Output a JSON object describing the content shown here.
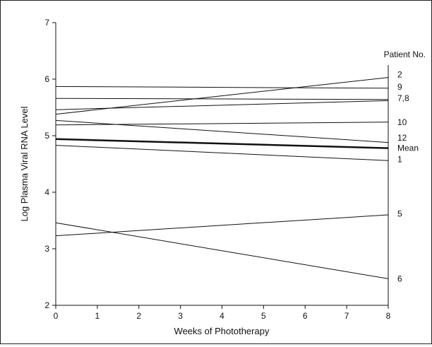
{
  "chart_data": {
    "type": "line",
    "xlabel": "Weeks of Phototherapy",
    "ylabel": "Log Plasma Viral RNA Level",
    "xlim": [
      0,
      8
    ],
    "ylim": [
      2,
      7
    ],
    "xticks": [
      0,
      1,
      2,
      3,
      4,
      5,
      6,
      7,
      8
    ],
    "yticks": [
      2,
      3,
      4,
      5,
      6,
      7
    ],
    "grid": false,
    "legend_title": "Patient No.",
    "series": [
      {
        "name": "2",
        "x": [
          0,
          8
        ],
        "y": [
          5.38,
          6.03
        ]
      },
      {
        "name": "9",
        "x": [
          0,
          8
        ],
        "y": [
          5.87,
          5.84
        ]
      },
      {
        "name": "7,8",
        "x": [
          0,
          8
        ],
        "y": [
          5.66,
          5.64
        ]
      },
      {
        "name": "7,8",
        "x": [
          0,
          8
        ],
        "y": [
          5.46,
          5.62
        ]
      },
      {
        "name": "10",
        "x": [
          0,
          8
        ],
        "y": [
          5.19,
          5.24
        ]
      },
      {
        "name": "12",
        "x": [
          0,
          8
        ],
        "y": [
          5.27,
          4.88
        ]
      },
      {
        "name": "Mean",
        "x": [
          0,
          8
        ],
        "y": [
          4.94,
          4.78
        ],
        "emphasis": true
      },
      {
        "name": "1",
        "x": [
          0,
          8
        ],
        "y": [
          4.83,
          4.56
        ]
      },
      {
        "name": "5",
        "x": [
          0,
          8
        ],
        "y": [
          3.23,
          3.6
        ]
      },
      {
        "name": "6",
        "x": [
          0,
          8
        ],
        "y": [
          3.46,
          2.47
        ]
      }
    ],
    "annotations": [
      {
        "text": "2",
        "y": 6.08
      },
      {
        "text": "9",
        "y": 5.86
      },
      {
        "text": "7,8",
        "y": 5.66
      },
      {
        "text": "10",
        "y": 5.24
      },
      {
        "text": "12",
        "y": 4.96
      },
      {
        "text": "Mean",
        "y": 4.78
      },
      {
        "text": "1",
        "y": 4.58
      },
      {
        "text": "5",
        "y": 3.62
      },
      {
        "text": "6",
        "y": 2.47
      }
    ]
  }
}
